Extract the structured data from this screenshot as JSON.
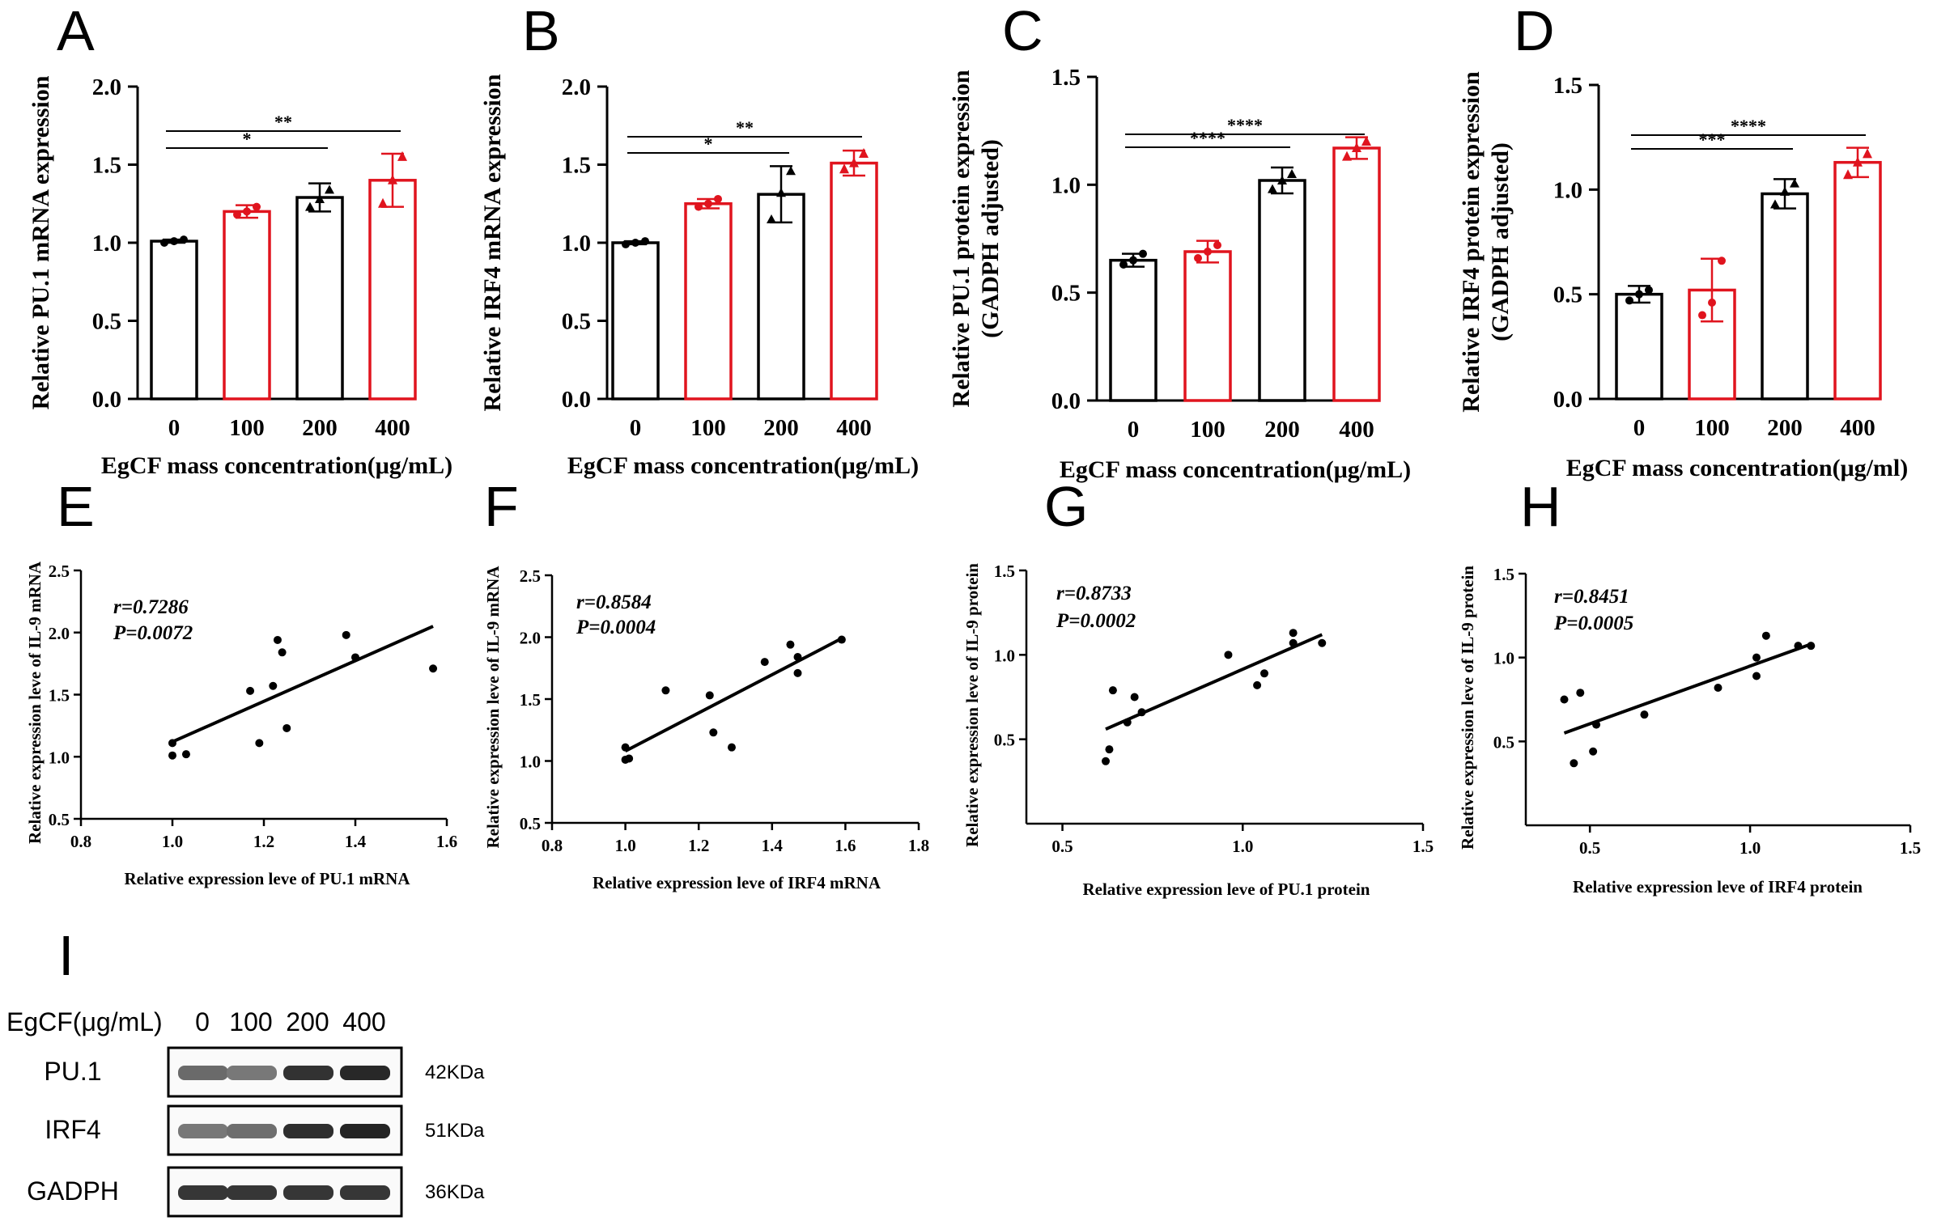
{
  "panel_letters": [
    "A",
    "B",
    "C",
    "D",
    "E",
    "F",
    "G",
    "H",
    "I"
  ],
  "chart_data": [
    {
      "id": "A",
      "type": "bar",
      "ylabel": "Relative PU.1 mRNA expression",
      "xlabel": "EgCF mass concentration(μg/mL)",
      "categories": [
        "0",
        "100",
        "200",
        "400"
      ],
      "values": [
        1.01,
        1.2,
        1.29,
        1.4
      ],
      "errors": [
        0.01,
        0.04,
        0.09,
        0.17
      ],
      "points": [
        [
          1.0,
          1.01,
          1.02
        ],
        [
          1.18,
          1.2,
          1.23
        ],
        [
          1.23,
          1.28,
          1.34
        ],
        [
          1.25,
          1.4,
          1.55
        ]
      ],
      "ylim": [
        0,
        2.0
      ],
      "yticks": [
        "0.0",
        "0.5",
        "1.0",
        "1.5",
        "2.0"
      ],
      "bar_colors": [
        "#000000",
        "#e0141e",
        "#000000",
        "#e0141e"
      ],
      "significance": [
        {
          "from": 0,
          "to": 2,
          "label": "*"
        },
        {
          "from": 0,
          "to": 3,
          "label": "**"
        }
      ]
    },
    {
      "id": "B",
      "type": "bar",
      "ylabel": "Relative IRF4  mRNA expression",
      "xlabel": "EgCF mass concentration(μg/mL)",
      "categories": [
        "0",
        "100",
        "200",
        "400"
      ],
      "values": [
        1.0,
        1.25,
        1.31,
        1.51
      ],
      "errors": [
        0.01,
        0.03,
        0.18,
        0.08
      ],
      "points": [
        [
          0.99,
          1.0,
          1.01
        ],
        [
          1.23,
          1.25,
          1.28
        ],
        [
          1.15,
          1.32,
          1.46
        ],
        [
          1.47,
          1.51,
          1.57
        ]
      ],
      "ylim": [
        0,
        2.0
      ],
      "yticks": [
        "0.0",
        "0.5",
        "1.0",
        "1.5",
        "2.0"
      ],
      "bar_colors": [
        "#000000",
        "#e0141e",
        "#000000",
        "#e0141e"
      ],
      "significance": [
        {
          "from": 0,
          "to": 2,
          "label": "*"
        },
        {
          "from": 0,
          "to": 3,
          "label": "**"
        }
      ]
    },
    {
      "id": "C",
      "type": "bar",
      "ylabel": "Relative PU.1 protein expression",
      "ylabel2": "(GADPH adjusted)",
      "xlabel": "EgCF mass concentration(μg/mL)",
      "categories": [
        "0",
        "100",
        "200",
        "400"
      ],
      "values": [
        0.65,
        0.69,
        1.02,
        1.17
      ],
      "errors": [
        0.03,
        0.05,
        0.06,
        0.05
      ],
      "points": [
        [
          0.63,
          0.65,
          0.68
        ],
        [
          0.66,
          0.69,
          0.72
        ],
        [
          0.98,
          1.02,
          1.05
        ],
        [
          1.13,
          1.17,
          1.2
        ]
      ],
      "ylim": [
        0,
        1.5
      ],
      "yticks": [
        "0.0",
        "0.5",
        "1.0",
        "1.5"
      ],
      "bar_colors": [
        "#000000",
        "#e0141e",
        "#000000",
        "#e0141e"
      ],
      "significance": [
        {
          "from": 0,
          "to": 2,
          "label": "****"
        },
        {
          "from": 0,
          "to": 3,
          "label": "****"
        }
      ]
    },
    {
      "id": "D",
      "type": "bar",
      "ylabel": "Relative IRF4 protein expression",
      "ylabel2": "(GADPH adjusted)",
      "xlabel": "EgCF mass concentration(μg/ml)",
      "categories": [
        "0",
        "100",
        "200",
        "400"
      ],
      "values": [
        0.5,
        0.52,
        0.98,
        1.13
      ],
      "errors": [
        0.04,
        0.15,
        0.07,
        0.07
      ],
      "points": [
        [
          0.47,
          0.5,
          0.52
        ],
        [
          0.4,
          0.46,
          0.66
        ],
        [
          0.93,
          0.99,
          1.03
        ],
        [
          1.07,
          1.13,
          1.17
        ]
      ],
      "ylim": [
        0,
        1.5
      ],
      "yticks": [
        "0.0",
        "0.5",
        "1.0",
        "1.5"
      ],
      "bar_colors": [
        "#000000",
        "#e0141e",
        "#000000",
        "#e0141e"
      ],
      "significance": [
        {
          "from": 0,
          "to": 2,
          "label": "***"
        },
        {
          "from": 0,
          "to": 3,
          "label": "****"
        }
      ]
    },
    {
      "id": "E",
      "type": "scatter",
      "ylabel": "Relative expression leve of IL-9 mRNA",
      "xlabel": "Relative expression leve of PU.1 mRNA",
      "r_label": "r=0.7286",
      "p_label": "P=0.0072",
      "xlim": [
        0.8,
        1.6
      ],
      "ylim": [
        0.5,
        2.5
      ],
      "xticks": [
        "0.8",
        "1.0",
        "1.2",
        "1.4",
        "1.6"
      ],
      "yticks": [
        "0.5",
        "1.0",
        "1.5",
        "2.0",
        "2.5"
      ],
      "x": [
        1.0,
        1.0,
        1.03,
        1.17,
        1.19,
        1.22,
        1.23,
        1.24,
        1.25,
        1.38,
        1.4,
        1.57
      ],
      "y": [
        1.11,
        1.01,
        1.02,
        1.53,
        1.11,
        1.57,
        1.94,
        1.84,
        1.23,
        1.98,
        1.8,
        1.71
      ],
      "fit": [
        [
          1.0,
          1.12
        ],
        [
          1.57,
          2.05
        ]
      ]
    },
    {
      "id": "F",
      "type": "scatter",
      "ylabel": "Relative expression leve of IL-9 mRNA",
      "xlabel": "Relative expression leve of IRF4 mRNA",
      "r_label": "r=0.8584",
      "p_label": "P=0.0004",
      "xlim": [
        0.8,
        1.8
      ],
      "ylim": [
        0.5,
        2.5
      ],
      "xticks": [
        "0.8",
        "1.0",
        "1.2",
        "1.4",
        "1.6",
        "1.8"
      ],
      "yticks": [
        "0.5",
        "1.0",
        "1.5",
        "2.0",
        "2.5"
      ],
      "x": [
        1.0,
        1.0,
        1.01,
        1.11,
        1.23,
        1.24,
        1.29,
        1.38,
        1.45,
        1.47,
        1.47,
        1.59
      ],
      "y": [
        1.11,
        1.01,
        1.02,
        1.57,
        1.53,
        1.23,
        1.11,
        1.8,
        1.94,
        1.84,
        1.71,
        1.98
      ],
      "fit": [
        [
          1.0,
          1.08
        ],
        [
          1.59,
          1.99
        ]
      ]
    },
    {
      "id": "G",
      "type": "scatter",
      "ylabel": "Relative expression leve of IL-9 protein",
      "xlabel": "Relative expression leve of PU.1 protein",
      "r_label": "r=0.8733",
      "p_label": "P=0.0002",
      "xlim": [
        0.4,
        1.5
      ],
      "ylim": [
        0.0,
        1.5
      ],
      "xticks": [
        "0.5",
        "1.0",
        "1.5"
      ],
      "yticks": [
        "0.5",
        "1.0",
        "1.5"
      ],
      "x": [
        0.62,
        0.63,
        0.64,
        0.68,
        0.7,
        0.72,
        0.96,
        1.04,
        1.06,
        1.14,
        1.14,
        1.22
      ],
      "y": [
        0.37,
        0.44,
        0.79,
        0.6,
        0.75,
        0.66,
        1.0,
        0.82,
        0.89,
        1.13,
        1.07,
        1.07
      ],
      "fit": [
        [
          0.62,
          0.56
        ],
        [
          1.22,
          1.12
        ]
      ]
    },
    {
      "id": "H",
      "type": "scatter",
      "ylabel": "Relative expression leve of IL-9 protein",
      "xlabel": "Relative expression leve of IRF4 protein",
      "r_label": "r=0.8451",
      "p_label": "P=0.0005",
      "xlim": [
        0.3,
        1.5
      ],
      "ylim": [
        0.0,
        1.5
      ],
      "xticks": [
        "0.5",
        "1.0",
        "1.5"
      ],
      "yticks": [
        "0.5",
        "1.0",
        "1.5"
      ],
      "x": [
        0.42,
        0.45,
        0.47,
        0.51,
        0.52,
        0.67,
        0.9,
        1.02,
        1.02,
        1.05,
        1.15,
        1.19
      ],
      "y": [
        0.75,
        0.37,
        0.79,
        0.44,
        0.6,
        0.66,
        0.82,
        1.0,
        0.89,
        1.13,
        1.07,
        1.07
      ],
      "fit": [
        [
          0.42,
          0.55
        ],
        [
          1.19,
          1.08
        ]
      ]
    }
  ],
  "western_blot": {
    "header_label": "EgCF(μg/mL)",
    "lanes": [
      "0",
      "100",
      "200",
      "400"
    ],
    "rows": [
      {
        "name": "PU.1",
        "size": "42KDa",
        "intensity": [
          0.62,
          0.55,
          0.9,
          0.95
        ]
      },
      {
        "name": "IRF4",
        "size": "51KDa",
        "intensity": [
          0.55,
          0.6,
          0.92,
          0.97
        ]
      },
      {
        "name": "GADPH",
        "size": "36KDa",
        "intensity": [
          0.88,
          0.88,
          0.88,
          0.88
        ]
      }
    ]
  },
  "colors": {
    "black": "#000000",
    "red": "#e0141e"
  }
}
